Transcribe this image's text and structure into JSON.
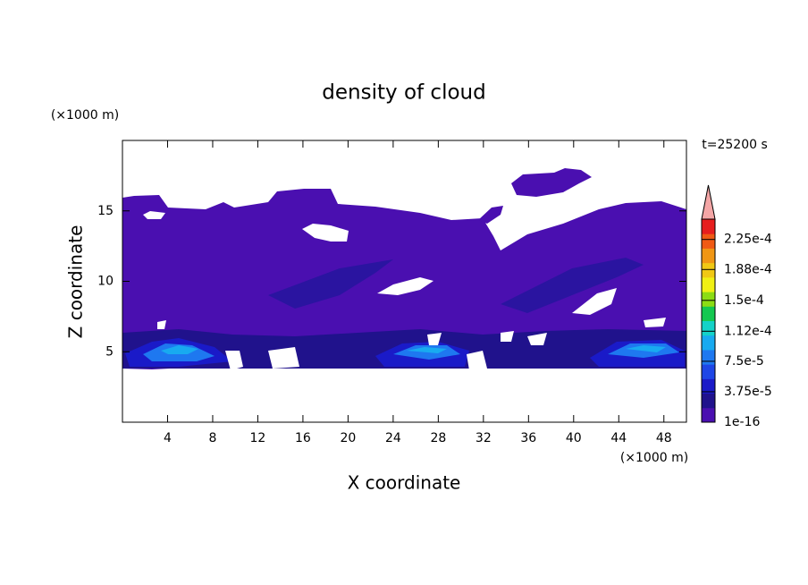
{
  "chart_data": {
    "type": "contour",
    "title": "density of cloud",
    "x_label": "X coordinate",
    "y_label": "Z coordinate",
    "x_unit": "(×1000 m)",
    "y_unit": "(×1000 m)",
    "annotation": "t=25200 s",
    "xlim": [
      0,
      50
    ],
    "ylim": [
      0,
      20
    ],
    "xticks": [
      4,
      8,
      12,
      16,
      20,
      24,
      28,
      32,
      36,
      40,
      44,
      48
    ],
    "yticks": [
      5,
      10,
      15
    ],
    "colorbar": {
      "clim": [
        1e-16,
        0.00025
      ],
      "ticks": [
        {
          "value": 1e-16,
          "label": "1e-16"
        },
        {
          "value": 3.75e-05,
          "label": "3.75e-5"
        },
        {
          "value": 7.5e-05,
          "label": "7.5e-5"
        },
        {
          "value": 0.000112,
          "label": "1.12e-4"
        },
        {
          "value": 0.00015,
          "label": "1.5e-4"
        },
        {
          "value": 0.000188,
          "label": "1.88e-4"
        },
        {
          "value": 0.000225,
          "label": "2.25e-4"
        }
      ],
      "colors": [
        "#4a0fb0",
        "#20128c",
        "#1a1ac8",
        "#1e46e6",
        "#1e78f0",
        "#18aaf0",
        "#14d2c8",
        "#14c850",
        "#8cdc14",
        "#f0f014",
        "#f0c814",
        "#f09614",
        "#f05a14",
        "#e61e1e"
      ],
      "extend_color": "#f4a6a6"
    }
  }
}
